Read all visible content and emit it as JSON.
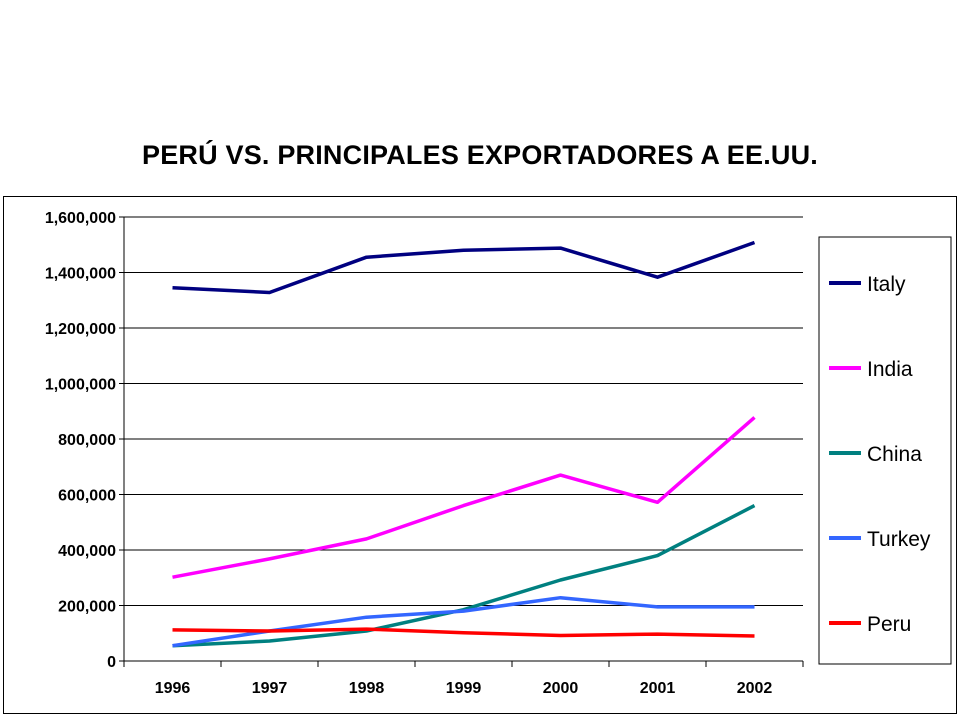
{
  "chart_data": {
    "type": "line",
    "title": "PERÚ VS. PRINCIPALES EXPORTADORES A EE.UU.",
    "xlabel": "",
    "ylabel": "",
    "categories": [
      "1996",
      "1997",
      "1998",
      "1999",
      "2000",
      "2001",
      "2002"
    ],
    "ylim": [
      0,
      1600000
    ],
    "yticks": [
      "0",
      "200,000",
      "400,000",
      "600,000",
      "800,000",
      "1,000,000",
      "1,200,000",
      "1,400,000",
      "1,600,000"
    ],
    "grid": true,
    "legend_position": "right",
    "series": [
      {
        "name": "Italy",
        "color": "#000080",
        "values": [
          1345000,
          1328000,
          1455000,
          1480000,
          1488000,
          1383000,
          1508000
        ]
      },
      {
        "name": "India",
        "color": "#ff00ff",
        "values": [
          302000,
          368000,
          440000,
          560000,
          670000,
          572000,
          878000
        ]
      },
      {
        "name": "China",
        "color": "#008080",
        "values": [
          55000,
          72000,
          108000,
          185000,
          292000,
          380000,
          560000
        ]
      },
      {
        "name": "Turkey",
        "color": "#3366ff",
        "values": [
          55000,
          108000,
          158000,
          180000,
          228000,
          195000,
          195000
        ]
      },
      {
        "name": "Peru",
        "color": "#ff0000",
        "values": [
          112000,
          108000,
          115000,
          102000,
          92000,
          97000,
          90000
        ]
      }
    ]
  }
}
